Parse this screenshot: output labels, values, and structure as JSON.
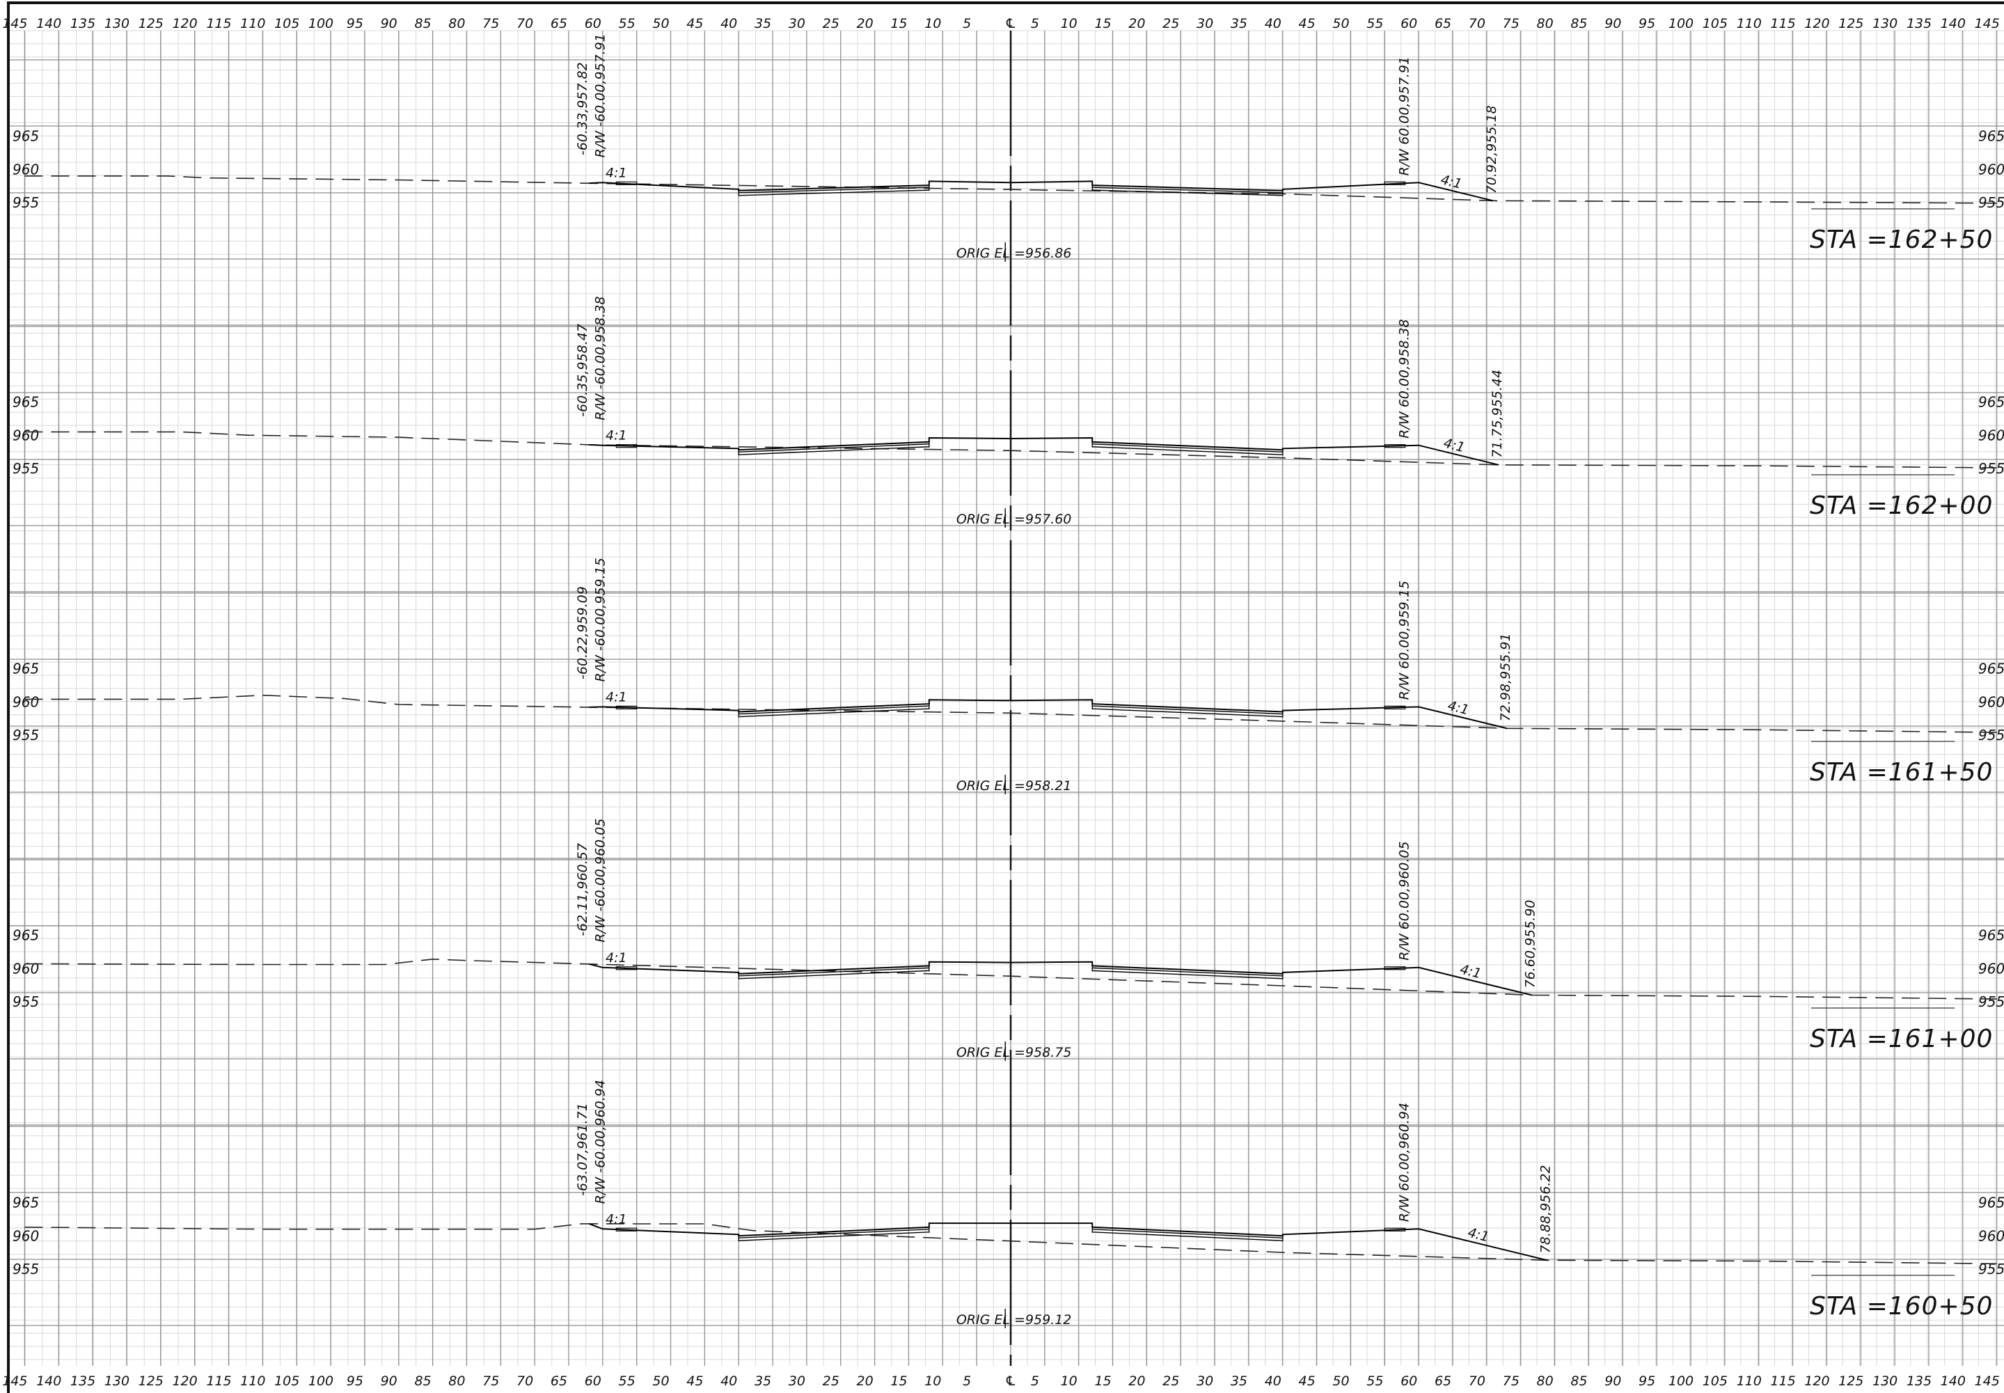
{
  "scale": {
    "offset_labels": [
      "145",
      "140",
      "135",
      "130",
      "125",
      "120",
      "115",
      "110",
      "105",
      "100",
      "95",
      "90",
      "85",
      "80",
      "75",
      "70",
      "65",
      "60",
      "55",
      "50",
      "45",
      "40",
      "35",
      "30",
      "25",
      "20",
      "15",
      "10",
      "5",
      "℄",
      "5",
      "10",
      "15",
      "20",
      "25",
      "30",
      "35",
      "40",
      "45",
      "50",
      "55",
      "60",
      "65",
      "70",
      "75",
      "80",
      "85",
      "90",
      "95",
      "100",
      "105",
      "110",
      "115",
      "120",
      "125",
      "130",
      "135",
      "140",
      "145"
    ],
    "offset_values": [
      -145,
      -140,
      -135,
      -130,
      -125,
      -120,
      -115,
      -110,
      -105,
      -100,
      -95,
      -90,
      -85,
      -80,
      -75,
      -70,
      -65,
      -60,
      -55,
      -50,
      -45,
      -40,
      -35,
      -30,
      -25,
      -20,
      -15,
      -10,
      -5,
      0,
      5,
      10,
      15,
      20,
      25,
      30,
      35,
      40,
      45,
      50,
      55,
      60,
      65,
      70,
      75,
      80,
      85,
      90,
      95,
      100,
      105,
      110,
      115,
      120,
      125,
      130,
      135,
      140,
      145
    ],
    "elevation_labels": [
      "965",
      "960",
      "955"
    ],
    "elevation_values": [
      965,
      960,
      955
    ]
  },
  "sections": [
    {
      "station": "STA =162+50",
      "orig_el": "ORIG EL =956.86",
      "left_catch": "-60.33,957.82",
      "left_rw": "R/W -60.00,957.91",
      "right_rw": "R/W 60.00,957.91",
      "right_catch": "70.92,955.18",
      "slope_left": "4:1",
      "slope_right": "4:1",
      "elev": {
        "cl": 957.9,
        "lane": 957.5,
        "ditch": 956.7,
        "ditch_edge": 956.9,
        "rw": 957.9,
        "catch_l": 957.82,
        "catch_r": 955.18,
        "catch_r_off": 70.92
      },
      "ground": [
        [
          -145,
          958.9
        ],
        [
          -124,
          958.9
        ],
        [
          -118,
          958.6
        ],
        [
          -90,
          958.3
        ],
        [
          -62,
          957.8
        ],
        [
          0,
          956.86
        ],
        [
          40,
          956.2
        ],
        [
          70.92,
          955.18
        ],
        [
          110,
          955.0
        ],
        [
          145,
          954.8
        ]
      ]
    },
    {
      "station": "STA =162+00",
      "orig_el": "ORIG EL =957.60",
      "left_catch": "-60.35,958.47",
      "left_rw": "R/W -60.00,958.38",
      "right_rw": "R/W 60.00,958.38",
      "right_catch": "71.75,955.44",
      "slope_left": "4:1",
      "slope_right": "4:1",
      "elev": {
        "cl": 959.4,
        "lane": 958.9,
        "ditch": 957.7,
        "ditch_edge": 957.9,
        "rw": 958.38,
        "catch_l": 958.47,
        "catch_r": 955.44,
        "catch_r_off": 71.75
      },
      "ground": [
        [
          -145,
          960.4
        ],
        [
          -122,
          960.4
        ],
        [
          -112,
          959.9
        ],
        [
          -90,
          959.6
        ],
        [
          -62,
          958.47
        ],
        [
          0,
          957.6
        ],
        [
          40,
          956.5
        ],
        [
          71.75,
          955.44
        ],
        [
          110,
          955.3
        ],
        [
          145,
          955.0
        ]
      ]
    },
    {
      "station": "STA =161+50",
      "orig_el": "ORIG EL =958.21",
      "left_catch": "-60.22,959.09",
      "left_rw": "R/W -60.00,959.15",
      "right_rw": "R/W 60.00,959.15",
      "right_catch": "72.98,955.91",
      "slope_left": "4:1",
      "slope_right": "4:1",
      "elev": {
        "cl": 960.1,
        "lane": 959.6,
        "ditch": 958.4,
        "ditch_edge": 958.6,
        "rw": 959.15,
        "catch_l": 959.09,
        "catch_r": 955.91,
        "catch_r_off": 72.98
      },
      "ground": [
        [
          -145,
          960.3
        ],
        [
          -122,
          960.3
        ],
        [
          -110,
          960.9
        ],
        [
          -98,
          960.4
        ],
        [
          -90,
          959.5
        ],
        [
          -62,
          959.09
        ],
        [
          0,
          958.21
        ],
        [
          40,
          957.0
        ],
        [
          72.98,
          955.91
        ],
        [
          110,
          955.7
        ],
        [
          145,
          955.3
        ]
      ]
    },
    {
      "station": "STA =161+00",
      "orig_el": "ORIG EL =958.75",
      "left_catch": "-62.11,960.57",
      "left_rw": "R/W -60.00,960.05",
      "right_rw": "R/W 60.00,960.05",
      "right_catch": "76.60,955.90",
      "slope_left": "4:1",
      "slope_right": "4:1",
      "elev": {
        "cl": 960.8,
        "lane": 960.3,
        "ditch": 959.1,
        "ditch_edge": 959.3,
        "rw": 960.05,
        "catch_l": 960.57,
        "catch_r": 955.9,
        "catch_r_off": 76.6
      },
      "ground": [
        [
          -145,
          960.6
        ],
        [
          -110,
          960.5
        ],
        [
          -92,
          960.5
        ],
        [
          -85,
          961.3
        ],
        [
          -80,
          961.1
        ],
        [
          -62,
          960.57
        ],
        [
          0,
          958.75
        ],
        [
          40,
          957.3
        ],
        [
          76.6,
          955.9
        ],
        [
          110,
          955.7
        ],
        [
          145,
          955.3
        ]
      ]
    },
    {
      "station": "STA =160+50",
      "orig_el": "ORIG EL =959.12",
      "left_catch": "-63.07,961.71",
      "left_rw": "R/W -60.00,960.94",
      "right_rw": "R/W 60.00,960.94",
      "right_catch": "78.88,956.22",
      "slope_left": "4:1",
      "slope_right": "4:1",
      "elev": {
        "cl": 961.8,
        "lane": 961.2,
        "ditch": 959.9,
        "ditch_edge": 960.1,
        "rw": 960.94,
        "catch_l": 961.71,
        "catch_r": 956.22,
        "catch_r_off": 78.88
      },
      "ground": [
        [
          -145,
          961.2
        ],
        [
          -110,
          960.9
        ],
        [
          -70,
          960.9
        ],
        [
          -63.07,
          961.71
        ],
        [
          -55,
          961.7
        ],
        [
          -45,
          961.7
        ],
        [
          -38,
          960.7
        ],
        [
          0,
          959.12
        ],
        [
          40,
          957.4
        ],
        [
          78.88,
          956.22
        ],
        [
          110,
          956.1
        ],
        [
          145,
          955.7
        ]
      ]
    }
  ]
}
